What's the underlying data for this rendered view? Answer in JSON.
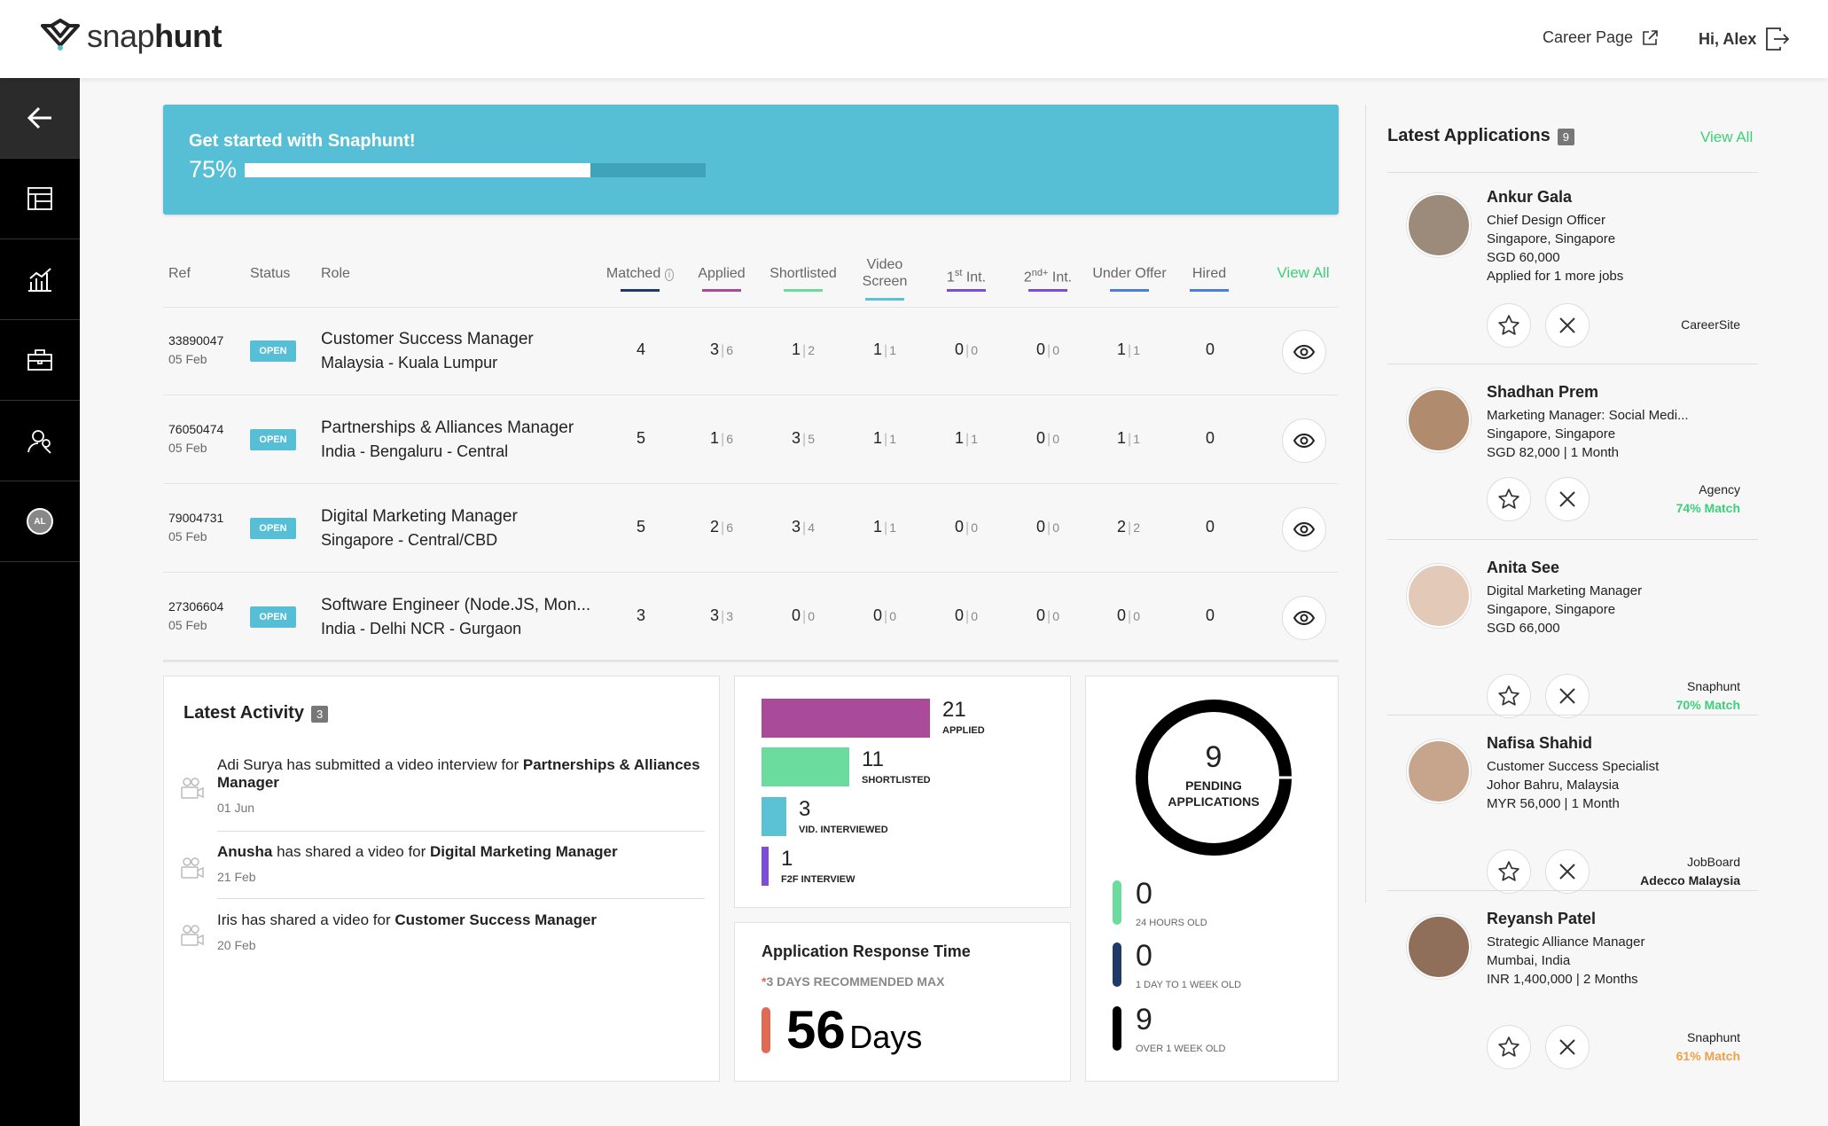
{
  "header": {
    "brand_light": "snap",
    "brand_bold": "hunt",
    "career_page": "Career Page",
    "greeting": "Hi, Alex"
  },
  "sidebar": {
    "items": [
      {
        "icon": "arrow-left-icon"
      },
      {
        "icon": "layout-icon"
      },
      {
        "icon": "chart-icon"
      },
      {
        "icon": "briefcase-icon"
      },
      {
        "icon": "user-search-icon"
      },
      {
        "icon": "avatar-initials",
        "label": "AL"
      }
    ]
  },
  "banner": {
    "title": "Get started with Snaphunt!",
    "progress_label": "75%",
    "progress": 0.75
  },
  "jobs_table": {
    "columns": {
      "ref": "Ref",
      "status": "Status",
      "role": "Role",
      "matched": "Matched",
      "applied": "Applied",
      "shortlisted": "Shortlisted",
      "video_1": "Video",
      "video_2": "Screen",
      "first_a": "1",
      "first_sup": "st",
      "first_b": " Int.",
      "second_a": "2",
      "second_sup": "nd+",
      "second_b": " Int.",
      "under_offer": "Under Offer",
      "hired": "Hired",
      "view_all": "View All"
    },
    "rows": [
      {
        "ref": "33890047",
        "date": "05 Feb",
        "status": "OPEN",
        "title": "Customer Success Manager",
        "location": "Malaysia - Kuala Lumpur",
        "matched": "4",
        "applied": [
          "3",
          "6"
        ],
        "shortlisted": [
          "1",
          "2"
        ],
        "video": [
          "1",
          "1"
        ],
        "first": [
          "0",
          "0"
        ],
        "second": [
          "0",
          "0"
        ],
        "offer": [
          "1",
          "1"
        ],
        "hired": "0"
      },
      {
        "ref": "76050474",
        "date": "05 Feb",
        "status": "OPEN",
        "title": "Partnerships & Alliances Manager",
        "location": "India - Bengaluru - Central",
        "matched": "5",
        "applied": [
          "1",
          "6"
        ],
        "shortlisted": [
          "3",
          "5"
        ],
        "video": [
          "1",
          "1"
        ],
        "first": [
          "1",
          "1"
        ],
        "second": [
          "0",
          "0"
        ],
        "offer": [
          "1",
          "1"
        ],
        "hired": "0"
      },
      {
        "ref": "79004731",
        "date": "05 Feb",
        "status": "OPEN",
        "title": "Digital Marketing Manager",
        "location": "Singapore - Central/CBD",
        "matched": "5",
        "applied": [
          "2",
          "6"
        ],
        "shortlisted": [
          "3",
          "4"
        ],
        "video": [
          "1",
          "1"
        ],
        "first": [
          "0",
          "0"
        ],
        "second": [
          "0",
          "0"
        ],
        "offer": [
          "2",
          "2"
        ],
        "hired": "0"
      },
      {
        "ref": "27306604",
        "date": "05 Feb",
        "status": "OPEN",
        "title": "Software Engineer (Node.JS, Mon...",
        "location": "India - Delhi NCR - Gurgaon",
        "matched": "3",
        "applied": [
          "3",
          "3"
        ],
        "shortlisted": [
          "0",
          "0"
        ],
        "video": [
          "0",
          "0"
        ],
        "first": [
          "0",
          "0"
        ],
        "second": [
          "0",
          "0"
        ],
        "offer": [
          "0",
          "0"
        ],
        "hired": "0"
      }
    ]
  },
  "activity": {
    "title": "Latest Activity",
    "count": "3",
    "items": [
      {
        "pre": "Adi Surya has submitted a video interview for ",
        "bold": "Partnerships & Alliances Manager",
        "date": "01 Jun"
      },
      {
        "pre_bold": "Anusha",
        "pre": " has shared a video for ",
        "bold": "Digital Marketing Manager",
        "date": "21 Feb"
      },
      {
        "pre": "Iris has shared a video for ",
        "bold": "Customer Success Manager",
        "date": "20 Feb"
      }
    ]
  },
  "funnel": {
    "stages": [
      {
        "value": "21",
        "label": "APPLIED",
        "color": "#a94b98"
      },
      {
        "value": "11",
        "label": "SHORTLISTED",
        "color": "#6bdb9e"
      },
      {
        "value": "3",
        "label": "VID. INTERVIEWED",
        "color": "#5bc2d6"
      },
      {
        "value": "1",
        "label": "F2F INTERVIEW",
        "color": "#7c4ddb"
      }
    ]
  },
  "response_time": {
    "title": "Application Response Time",
    "note": "*3 DAYS RECOMMENDED MAX",
    "value": "56",
    "unit": "Days"
  },
  "pending": {
    "value": "9",
    "label_1": "PENDING",
    "label_2": "APPLICATIONS",
    "buckets": [
      {
        "value": "0",
        "label": "24 HOURS OLD",
        "color": "#6bdb9e"
      },
      {
        "value": "0",
        "label": "1 DAY TO 1 WEEK OLD",
        "color": "#1f3a68"
      },
      {
        "value": "9",
        "label": "OVER 1 WEEK OLD",
        "color": "#000000"
      }
    ]
  },
  "latest_apps": {
    "title": "Latest Applications",
    "count": "9",
    "view_all": "View All",
    "items": [
      {
        "name": "Ankur Gala",
        "lines": [
          "Chief Design Officer",
          "Singapore, Singapore",
          "SGD 60,000",
          "Applied for 1 more jobs"
        ],
        "source": "CareerSite",
        "match": "",
        "match_color": ""
      },
      {
        "name": "Shadhan Prem",
        "lines": [
          "Marketing Manager: Social Medi...",
          "Singapore, Singapore",
          "SGD 82,000 | 1 Month"
        ],
        "source": "Agency",
        "match": "74% Match",
        "match_color": "#3ecf7a"
      },
      {
        "name": "Anita See",
        "lines": [
          "Digital Marketing Manager",
          "Singapore, Singapore",
          "SGD 66,000"
        ],
        "source": "Snaphunt",
        "match": "70% Match",
        "match_color": "#3ecf7a"
      },
      {
        "name": "Nafisa Shahid",
        "lines": [
          "Customer Success Specialist",
          "Johor Bahru, Malaysia",
          "MYR 56,000 | 1 Month"
        ],
        "source": "JobBoard",
        "match": "Adecco Malaysia",
        "match_color": "#222222"
      },
      {
        "name": "Reyansh Patel",
        "lines": [
          "Strategic Alliance Manager",
          "Mumbai, India",
          "INR 1,400,000 | 2 Months"
        ],
        "source": "Snaphunt",
        "match": "61% Match",
        "match_color": "#f0a04b"
      }
    ]
  },
  "colors": {
    "accent": "#56bfd6",
    "green": "#3ecf7a",
    "matched_ul": "#1f3a68",
    "applied_ul": "#a94b98",
    "shortlisted_ul": "#6bdb9e",
    "video_ul": "#5bc2d6",
    "first_ul": "#7c4ddb",
    "second_ul": "#7c4ddb",
    "offer_ul": "#4a7fe0",
    "hired_ul": "#4a7fe0"
  }
}
